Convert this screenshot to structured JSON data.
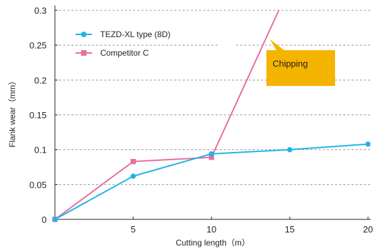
{
  "chart_data": {
    "type": "line",
    "title": "",
    "xlabel": "Cutting length（m）",
    "ylabel": "Flank wear（mm）",
    "xlim": [
      0,
      20
    ],
    "ylim": [
      0,
      0.3
    ],
    "x_ticks": [
      "5",
      "10",
      "15",
      "20"
    ],
    "y_ticks": [
      "0",
      "0.05",
      "0.1",
      "0.15",
      "0.2",
      "0.25",
      "0.3"
    ],
    "grid": "horizontal dashed",
    "legend_position": "top-left",
    "series": [
      {
        "name": "TEZD-XL type (8D)",
        "color": "#1eb4e6",
        "marker": "circle",
        "x": [
          0,
          5,
          10,
          15,
          20
        ],
        "y": [
          0,
          0.062,
          0.094,
          0.1,
          0.108
        ]
      },
      {
        "name": "Competitor C",
        "color": "#e66ea0",
        "marker": "square",
        "x": [
          0,
          5,
          10,
          14.3
        ],
        "y": [
          0,
          0.083,
          0.089,
          0.3
        ]
      }
    ],
    "annotations": [
      {
        "text": "Chipping",
        "color": "#f5b400",
        "target": {
          "x": 13.8,
          "y": 0.255
        }
      }
    ]
  }
}
